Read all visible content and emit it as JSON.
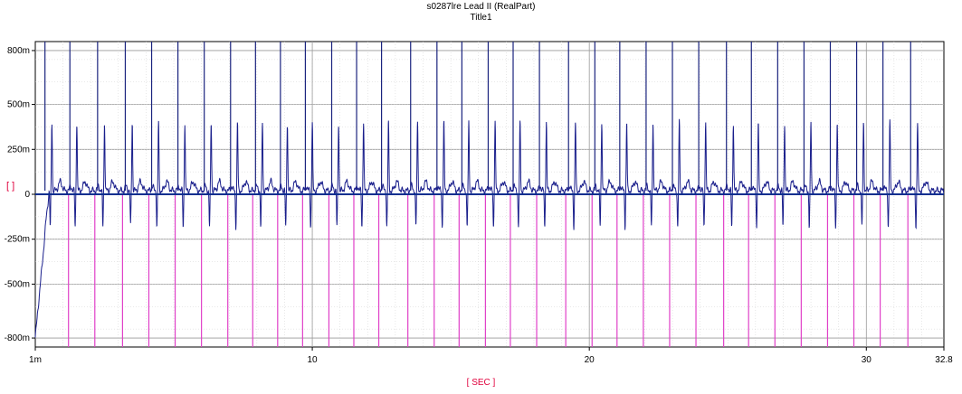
{
  "chart_data": {
    "type": "line",
    "title": "s0287lre Lead II (RealPart)",
    "subtitle": "Title1",
    "xlabel": "[ SEC ]",
    "ylabel": "[   ]",
    "xlim": [
      0.001,
      32.8
    ],
    "ylim": [
      -0.85,
      0.85
    ],
    "y_ticks": [
      -0.8,
      -0.5,
      -0.25,
      0,
      0.25,
      0.5,
      0.8
    ],
    "y_tick_labels": [
      "-800m",
      "-500m",
      "-250m",
      "0",
      "250m",
      "500m",
      "800m"
    ],
    "x_ticks": [
      0.001,
      10,
      20,
      30,
      32.8
    ],
    "x_tick_labels": [
      "1m",
      "10",
      "20",
      "30",
      "32.8"
    ],
    "grid": true,
    "series": [
      {
        "color": "#1a1f8c",
        "description": "ECG trace",
        "beat_times": [
          0.6,
          1.5,
          2.5,
          3.5,
          4.45,
          5.4,
          6.35,
          7.3,
          8.2,
          9.1,
          10.0,
          10.95,
          11.85,
          12.75,
          13.8,
          14.75,
          15.65,
          16.6,
          17.5,
          18.45,
          19.5,
          20.45,
          21.35,
          22.3,
          23.25,
          24.2,
          25.2,
          26.1,
          27.05,
          28.0,
          28.95,
          29.9,
          30.85,
          31.85
        ],
        "r_peak": 0.38,
        "s_trough": -0.2,
        "baseline": 0.02
      }
    ],
    "markers": {
      "blue_color": "#1a237e",
      "pink_color": "#e040c8",
      "blue_times": [
        0.35,
        1.25,
        2.25,
        3.25,
        4.2,
        5.15,
        6.1,
        7.05,
        7.95,
        8.85,
        9.75,
        10.7,
        11.6,
        12.5,
        13.55,
        14.5,
        15.4,
        16.35,
        17.25,
        18.2,
        19.25,
        20.2,
        21.1,
        22.05,
        23.0,
        23.95,
        24.95,
        25.85,
        26.8,
        27.75,
        28.7,
        29.65,
        30.6,
        31.6
      ],
      "pink_times": [
        1.2,
        2.15,
        3.15,
        4.1,
        5.05,
        6.0,
        6.95,
        7.85,
        8.75,
        9.65,
        10.6,
        11.5,
        12.4,
        13.45,
        14.4,
        15.3,
        16.25,
        17.15,
        18.1,
        19.15,
        20.1,
        21.0,
        21.95,
        22.9,
        23.85,
        24.85,
        25.75,
        26.7,
        27.65,
        28.6,
        29.55,
        30.5,
        31.5
      ]
    }
  }
}
